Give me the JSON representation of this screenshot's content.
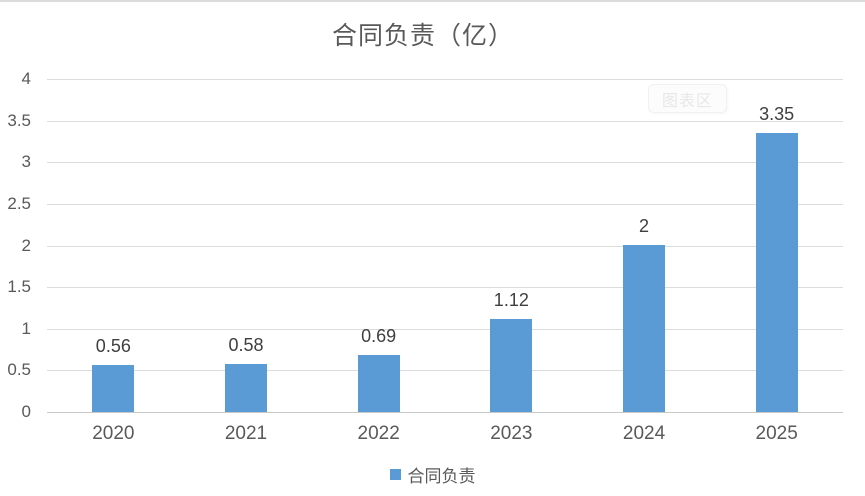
{
  "chart_data": {
    "type": "bar",
    "title": "合同负责（亿）",
    "categories": [
      "2020",
      "2021",
      "2022",
      "2023",
      "2024",
      "2025"
    ],
    "series": [
      {
        "name": "合同负责",
        "values": [
          0.56,
          0.58,
          0.69,
          1.12,
          2,
          3.35
        ]
      }
    ],
    "data_labels": [
      "0.56",
      "0.58",
      "0.69",
      "1.12",
      "2",
      "3.35"
    ],
    "xlabel": "",
    "ylabel": "",
    "ylim": [
      0,
      4
    ],
    "ytick_labels": [
      "4",
      "3.5",
      "3",
      "2.5",
      "2",
      "1.5",
      "1",
      "0.5",
      "0"
    ],
    "grid": true,
    "legend_position": "bottom",
    "legend_label": "合同负责",
    "colors": {
      "bar": "#5B9BD5",
      "gridline": "#DCDCDC",
      "axis_line": "#C9C9C9",
      "tick_label": "#595959",
      "data_label": "#3F3F3F",
      "title": "#595959",
      "top_border": "#DBDBDB"
    }
  },
  "overlay": {
    "chart_area_tooltip": "图表区"
  }
}
